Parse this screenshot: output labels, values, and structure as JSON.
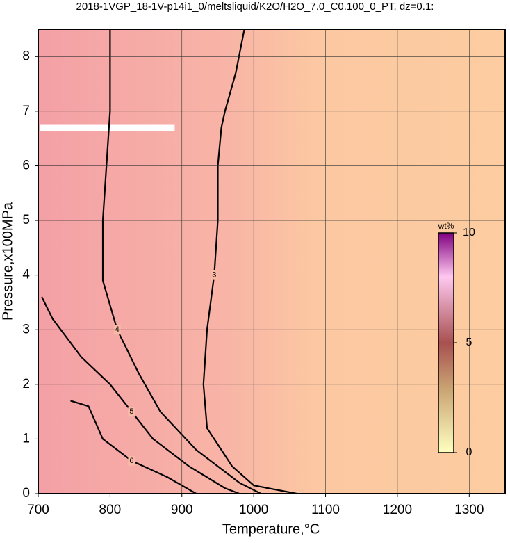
{
  "chart_data": {
    "type": "contour",
    "title": "2018-1VGP_18-1V-p14i1_0/meltsliquid/K2O/H2O_7.0_C0.100_0_PT, dz=0.1:",
    "xlabel": "Temperature,°C",
    "ylabel": "Pressure,x100MPa",
    "xlim": [
      700,
      1350
    ],
    "ylim": [
      0,
      8.5
    ],
    "xticks": [
      700,
      800,
      900,
      1000,
      1100,
      1200,
      1300
    ],
    "yticks": [
      0,
      1,
      2,
      3,
      4,
      5,
      6,
      7,
      8
    ],
    "grid": true,
    "colorbar": {
      "label": "wt%",
      "lim": [
        0,
        10
      ],
      "ticks": [
        0,
        5,
        10
      ]
    },
    "contours": [
      {
        "level": 3,
        "x": [
          987,
          975,
          960,
          955,
          950,
          950,
          945,
          935,
          930,
          935,
          970,
          1000,
          1060
        ],
        "y": [
          8.5,
          7.7,
          7.0,
          6.7,
          6.0,
          5.0,
          4.0,
          3.0,
          2.0,
          1.2,
          0.5,
          0.15,
          0
        ]
      },
      {
        "level": 4,
        "x": [
          800,
          800,
          795,
          790,
          790,
          810,
          840,
          870,
          920,
          980,
          1010
        ],
        "y": [
          8.5,
          7.0,
          6.0,
          5.0,
          3.9,
          3.0,
          2.2,
          1.5,
          0.8,
          0.2,
          0
        ]
      },
      {
        "level": 5,
        "x": [
          705,
          720,
          760,
          800,
          830,
          860,
          910,
          960,
          980
        ],
        "y": [
          3.6,
          3.2,
          2.5,
          2.0,
          1.5,
          1.0,
          0.5,
          0.1,
          0
        ]
      },
      {
        "level": 6,
        "x": [
          745,
          770,
          790,
          830,
          880,
          920
        ],
        "y": [
          1.7,
          1.6,
          1.0,
          0.6,
          0.3,
          0
        ]
      }
    ]
  }
}
